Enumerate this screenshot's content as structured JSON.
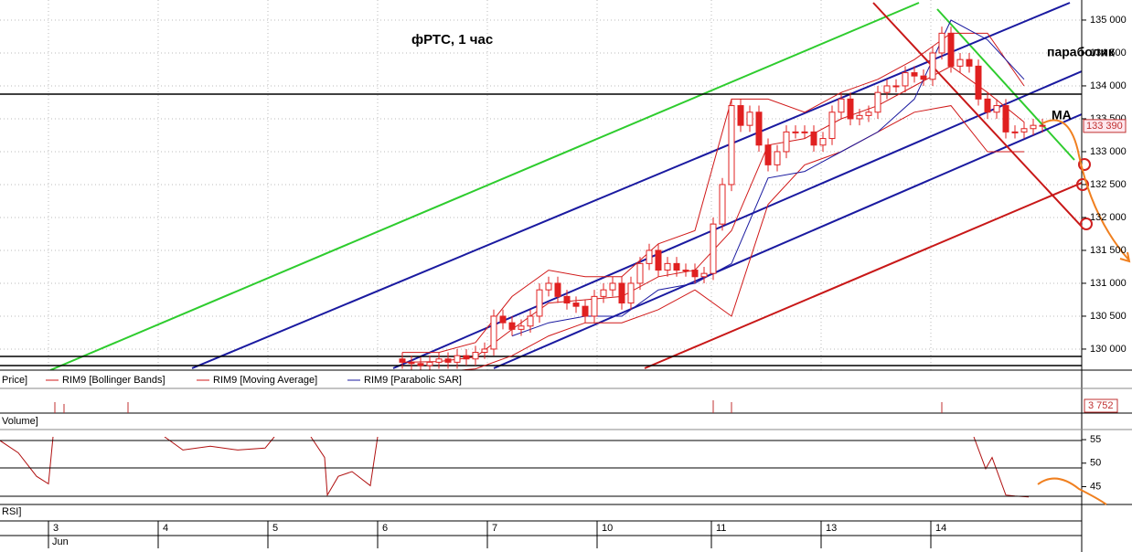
{
  "chart_data": {
    "type": "candlestick",
    "title": "фРТС,  1 час",
    "annotations": [
      "параболик",
      "MA"
    ],
    "xlim": [
      0,
      118.3
    ],
    "xticks": [
      {
        "value": 5.3,
        "label": "3"
      },
      {
        "value": 17.3,
        "label": "4"
      },
      {
        "value": 29.3,
        "label": "5"
      },
      {
        "value": 41.3,
        "label": "6"
      },
      {
        "value": 53.3,
        "label": "7"
      },
      {
        "value": 65.3,
        "label": "10"
      },
      {
        "value": 77.8,
        "label": "11"
      },
      {
        "value": 89.8,
        "label": "13"
      },
      {
        "value": 101.8,
        "label": "14"
      }
    ],
    "month_label": "Jun",
    "ylim": [
      129680,
      135305
    ],
    "yticks": [
      {
        "value": 130000,
        "label": "130 000"
      },
      {
        "value": 130500,
        "label": "130 500"
      },
      {
        "value": 131000,
        "label": "131 000"
      },
      {
        "value": 131500,
        "label": "131 500"
      },
      {
        "value": 132000,
        "label": "132 000"
      },
      {
        "value": 132500,
        "label": "132 500"
      },
      {
        "value": 133000,
        "label": "133 000"
      },
      {
        "value": 133500,
        "label": "133 500"
      },
      {
        "value": 134000,
        "label": "134 000"
      },
      {
        "value": 134500,
        "label": "134 500"
      },
      {
        "value": 135000,
        "label": "135 000"
      }
    ],
    "last_price": {
      "value": 133390,
      "label": "133 390"
    },
    "levels": [
      133875,
      129889,
      129750
    ],
    "candles": {
      "color": "#e02020",
      "x": [
        44,
        45,
        46,
        47,
        48,
        49,
        50,
        51,
        52,
        53,
        54,
        55,
        56,
        57,
        58,
        59,
        60,
        61,
        62,
        63,
        64,
        65,
        66,
        67,
        68,
        69,
        70,
        71,
        72,
        73,
        74,
        75,
        76,
        77,
        78,
        79,
        80,
        81,
        82,
        83,
        84,
        85,
        86,
        87,
        88,
        89,
        90,
        91,
        92,
        93,
        94,
        95,
        96,
        97,
        98,
        99,
        100,
        101,
        102,
        103,
        104,
        105,
        106,
        107,
        108,
        109,
        110,
        111,
        112,
        113,
        114
      ],
      "open": [
        129850,
        129800,
        129780,
        129750,
        129800,
        129850,
        129800,
        129900,
        129850,
        129950,
        130000,
        130500,
        130400,
        130300,
        130350,
        130500,
        130900,
        131000,
        130800,
        130700,
        130650,
        130500,
        130800,
        130900,
        131000,
        130700,
        131000,
        131300,
        131500,
        131200,
        131300,
        131200,
        131200,
        131100,
        131150,
        131900,
        132500,
        133700,
        133400,
        133600,
        133100,
        132800,
        133000,
        133300,
        133300,
        133300,
        133100,
        133200,
        133600,
        133800,
        133500,
        133550,
        133600,
        133900,
        134000,
        134000,
        134200,
        134150,
        134100,
        134500,
        134800,
        134300,
        134400,
        134300,
        133800,
        133600,
        133700,
        133300,
        133300,
        133350,
        133400
      ],
      "high": [
        129950,
        129900,
        129880,
        129900,
        129950,
        129950,
        130000,
        130000,
        130050,
        130100,
        130600,
        130600,
        130500,
        130450,
        130600,
        131000,
        131100,
        131100,
        130900,
        130800,
        130750,
        130900,
        131000,
        131100,
        131100,
        131100,
        131400,
        131600,
        131600,
        131400,
        131400,
        131300,
        131300,
        131250,
        132000,
        132600,
        133800,
        133800,
        133700,
        133700,
        133200,
        133100,
        133400,
        133400,
        133400,
        133400,
        133300,
        133700,
        133900,
        133900,
        133650,
        133700,
        134000,
        134100,
        134100,
        134300,
        134300,
        134250,
        134600,
        134900,
        134900,
        134500,
        134500,
        134400,
        133900,
        133800,
        133800,
        133400,
        133450,
        133500,
        133500
      ],
      "low": [
        129700,
        129680,
        129650,
        129650,
        129700,
        129700,
        129700,
        129750,
        129750,
        129850,
        129900,
        130300,
        130200,
        130200,
        130250,
        130400,
        130800,
        130700,
        130600,
        130550,
        130400,
        130400,
        130700,
        130800,
        130600,
        130600,
        130900,
        131200,
        131100,
        131100,
        131100,
        131100,
        131000,
        131000,
        131050,
        131800,
        132400,
        133300,
        133300,
        133000,
        132700,
        132700,
        132900,
        133200,
        133200,
        133000,
        133000,
        133100,
        133500,
        133400,
        133400,
        133450,
        133500,
        133800,
        133900,
        133900,
        134050,
        134000,
        134000,
        134400,
        134200,
        134200,
        134200,
        133700,
        133500,
        133500,
        133200,
        133200,
        133200,
        133250,
        133290
      ],
      "close": [
        129800,
        129780,
        129750,
        129800,
        129850,
        129800,
        129900,
        129850,
        129950,
        130000,
        130500,
        130400,
        130300,
        130350,
        130500,
        130900,
        131000,
        130800,
        130700,
        130650,
        130500,
        130800,
        130900,
        131000,
        130700,
        131000,
        131300,
        131500,
        131200,
        131300,
        131200,
        131200,
        131100,
        131150,
        131900,
        132500,
        133700,
        133400,
        133600,
        133100,
        132800,
        133000,
        133300,
        133300,
        133300,
        133100,
        133200,
        133600,
        133800,
        133500,
        133550,
        133600,
        133900,
        134000,
        134000,
        134200,
        134150,
        134100,
        134500,
        134800,
        134300,
        134400,
        134300,
        133800,
        133600,
        133700,
        133300,
        133300,
        133350,
        133400,
        133390
      ]
    },
    "indicators": {
      "x": [
        44,
        48,
        52,
        56,
        60,
        64,
        68,
        72,
        76,
        80,
        84,
        88,
        92,
        96,
        100,
        104,
        108,
        112
      ],
      "bollinger": {
        "name": "RIM9 [Bollinger Bands]",
        "color": "#d01818",
        "upper": [
          129950,
          129950,
          130100,
          130800,
          131200,
          131100,
          131100,
          131600,
          131800,
          133800,
          133800,
          133600,
          133900,
          134100,
          134400,
          134800,
          134800,
          134000
        ],
        "lower": [
          129650,
          129650,
          129700,
          129900,
          130200,
          130400,
          130400,
          130600,
          130900,
          130500,
          132200,
          132800,
          133000,
          133300,
          133600,
          133700,
          133000,
          133000
        ]
      },
      "moving_average": {
        "name": "RIM9 [Moving Average]",
        "color": "#d01818",
        "values": [
          129800,
          129810,
          129880,
          130300,
          130700,
          130750,
          130800,
          131100,
          131200,
          131800,
          133100,
          133200,
          133500,
          133700,
          134000,
          134300,
          133900,
          133450
        ]
      }
    },
    "parabolic_sar": {
      "name": "RIM9 [Parabolic SAR]",
      "color": "#1a1aa0",
      "x": [
        56,
        60,
        64,
        68,
        72,
        76,
        80,
        84,
        88,
        92,
        96,
        100,
        104,
        108,
        112
      ],
      "values": [
        130200,
        130400,
        130500,
        130500,
        130900,
        131000,
        131300,
        132600,
        132700,
        133000,
        133300,
        133800,
        135000,
        134700,
        134100
      ]
    },
    "price_label": "Price]",
    "volume_label": "Volume]",
    "volume_last": "3 752",
    "rsi": {
      "label": "RSI]",
      "color": "#b01010",
      "ylim": [
        41.2,
        55.6
      ],
      "yticks": [
        45,
        50,
        55
      ],
      "x": [
        0,
        2,
        4,
        5.3,
        5.8,
        null,
        18,
        20,
        23,
        26,
        29,
        30,
        null,
        34,
        35.5,
        35.8,
        37,
        38.5,
        40.5,
        41.3,
        null,
        106.5,
        107.8,
        108.5,
        110,
        111,
        112.5
      ],
      "values": [
        54.8,
        52.2,
        47.2,
        45.6,
        55.6,
        null,
        55.6,
        52.8,
        53.6,
        52.8,
        53.2,
        55.6,
        null,
        55.6,
        51.2,
        43.2,
        47.2,
        48.2,
        45.2,
        55.6,
        null,
        55.6,
        48.8,
        51.2,
        43.2,
        43.0,
        42.8
      ]
    }
  }
}
